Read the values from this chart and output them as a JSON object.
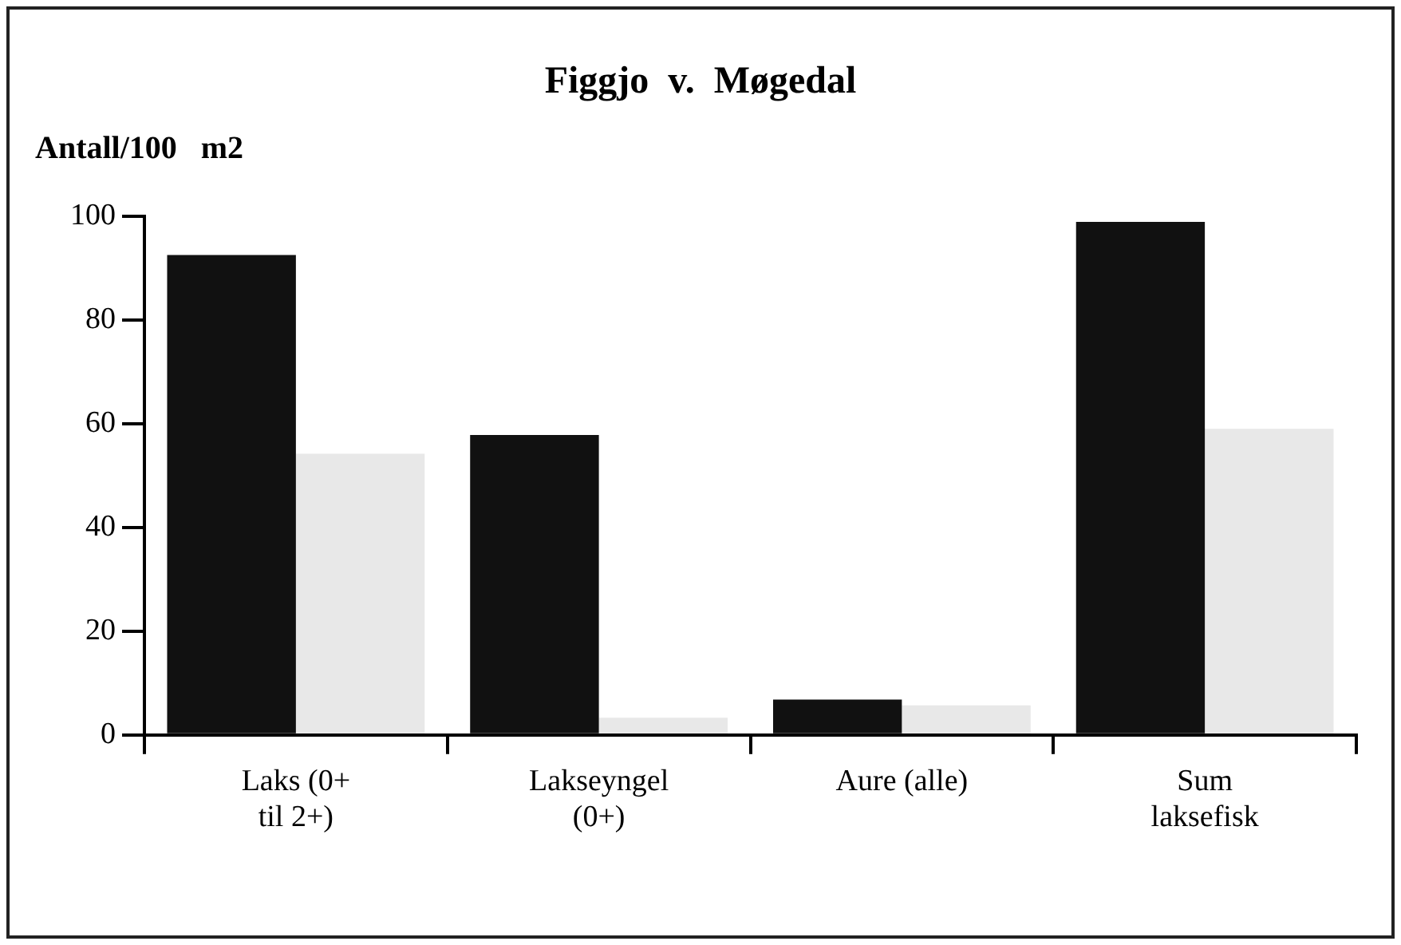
{
  "chart_data": {
    "type": "bar",
    "title": "Figgjo  v.  Møgedal",
    "ylabel": "Antall/100   m2",
    "categories": [
      "Laks (0+\ntil 2+)",
      "Lakseyngel\n(0+)",
      "Aure (alle)",
      "Sum\nlaksefisk"
    ],
    "series": [
      {
        "color": "#111111",
        "values": [
          92.5,
          57.8,
          6.8,
          98.9
        ]
      },
      {
        "color": "#e8e8e8",
        "values": [
          54.2,
          3.3,
          5.7,
          59
        ]
      }
    ],
    "ylim": [
      0,
      100
    ],
    "yticks": [
      0,
      20,
      40,
      60,
      80,
      100
    ],
    "grid": false,
    "legend": false
  }
}
